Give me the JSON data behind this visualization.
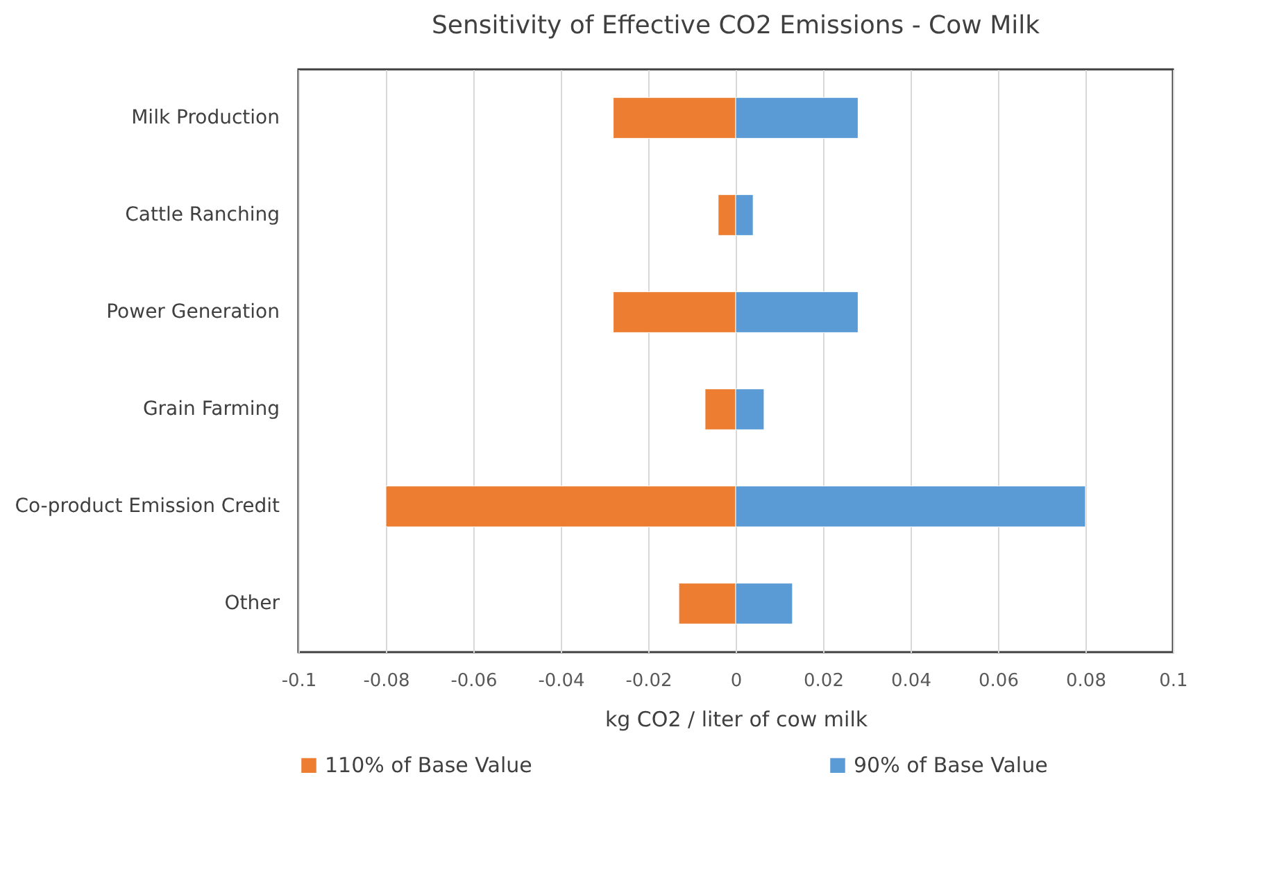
{
  "chart_data": {
    "type": "bar",
    "orientation": "horizontal",
    "stacked": true,
    "title": "Sensitivity of Effective CO2 Emissions - Cow Milk",
    "xlabel": "kg CO2 / liter of cow milk",
    "categories": [
      "Milk Production",
      "Cattle Ranching",
      "Power Generation",
      "Grain Farming",
      "Co-product Emission Credit",
      "Other"
    ],
    "series": [
      {
        "name": "110% of Base Value",
        "color": "#ed7d31",
        "values": [
          -0.028,
          -0.004,
          -0.028,
          -0.007,
          -0.08,
          -0.013
        ]
      },
      {
        "name": "90% of Base Value",
        "color": "#5b9bd5",
        "values": [
          0.028,
          0.004,
          0.028,
          0.0065,
          0.08,
          0.013
        ]
      }
    ],
    "xlim": [
      -0.1,
      0.1
    ],
    "xticks": [
      -0.1,
      -0.08,
      -0.06,
      -0.04,
      -0.02,
      0,
      0.02,
      0.04,
      0.06,
      0.08,
      0.1
    ],
    "grid": "x",
    "legend": "bottom"
  }
}
